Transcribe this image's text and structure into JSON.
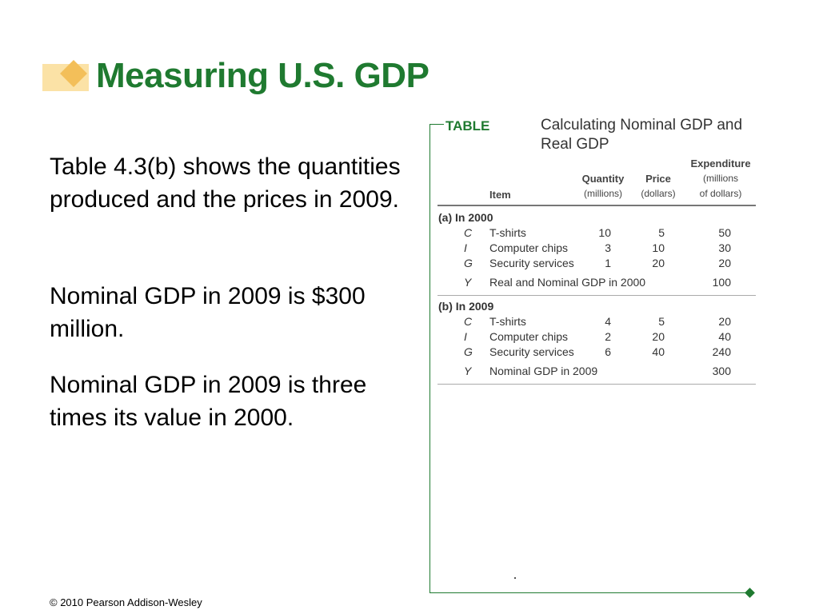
{
  "slide": {
    "title": "Measuring U.S. GDP",
    "paragraphs": [
      "Table 4.3(b) shows the quantities produced and the prices in 2009.",
      "Nominal GDP in 2009 is $300 million.",
      "Nominal GDP in 2009 is three times its value in 2000."
    ],
    "footer": "© 2010 Pearson Addison-Wesley"
  },
  "table": {
    "label": "TABLE",
    "title": "Calculating Nominal GDP and Real GDP",
    "headers": {
      "item": "Item",
      "quantity": [
        "Quantity",
        "(millions)"
      ],
      "price": [
        "Price",
        "(dollars)"
      ],
      "expenditure": [
        "Expenditure",
        "(millions",
        "of dollars)"
      ]
    },
    "section_a": {
      "label": "(a) In 2000",
      "rows": [
        {
          "sym": "C",
          "item": "T-shirts",
          "qty": "10",
          "price": "5",
          "exp": "50"
        },
        {
          "sym": "I",
          "item": "Computer chips",
          "qty": "3",
          "price": "10",
          "exp": "30"
        },
        {
          "sym": "G",
          "item": "Security services",
          "qty": "1",
          "price": "20",
          "exp": "20"
        },
        {
          "sym": "Y",
          "item": "Real and Nominal GDP in 2000",
          "qty": "",
          "price": "",
          "exp": "100"
        }
      ]
    },
    "section_b": {
      "label": "(b) In 2009",
      "rows": [
        {
          "sym": "C",
          "item": "T-shirts",
          "qty": "4",
          "price": "5",
          "exp": "20"
        },
        {
          "sym": "I",
          "item": "Computer chips",
          "qty": "2",
          "price": "20",
          "exp": "40"
        },
        {
          "sym": "G",
          "item": "Security services",
          "qty": "6",
          "price": "40",
          "exp": "240"
        },
        {
          "sym": "Y",
          "item": "Nominal GDP in 2009",
          "qty": "",
          "price": "",
          "exp": "300"
        }
      ]
    }
  },
  "colors": {
    "title_green": "#1f7a30",
    "logo_light": "#fbe2a6",
    "logo_dark": "#f3bf59"
  }
}
